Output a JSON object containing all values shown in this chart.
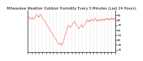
{
  "title": "Milwaukee Weather Outdoor Humidity Every 5 Minutes (Last 24 Hours)",
  "y_right": [
    90,
    80,
    70,
    60,
    50,
    40,
    30,
    20
  ],
  "ylim": [
    15,
    100
  ],
  "line_color": "#ff0000",
  "bg_color": "#ffffff",
  "grid_color": "#aaaaaa",
  "title_fontsize": 3.8,
  "tick_fontsize": 3.0,
  "data_y": [
    88,
    88,
    87,
    87,
    86,
    85,
    84,
    83,
    82,
    82,
    83,
    84,
    85,
    86,
    86,
    85,
    84,
    83,
    82,
    82,
    83,
    84,
    85,
    86,
    87,
    88,
    89,
    90,
    91,
    92,
    91,
    90,
    89,
    88,
    87,
    86,
    87,
    88,
    89,
    90,
    91,
    92,
    91,
    90,
    89,
    88,
    87,
    86,
    85,
    84,
    83,
    82,
    81,
    80,
    79,
    78,
    77,
    76,
    75,
    74,
    73,
    72,
    71,
    70,
    69,
    68,
    67,
    66,
    65,
    64,
    63,
    62,
    61,
    60,
    59,
    58,
    57,
    56,
    55,
    54,
    53,
    52,
    51,
    50,
    49,
    48,
    47,
    46,
    45,
    44,
    43,
    42,
    41,
    40,
    39,
    38,
    37,
    36,
    35,
    34,
    33,
    32,
    31,
    30,
    31,
    32,
    33,
    34,
    33,
    32,
    31,
    30,
    29,
    31,
    33,
    35,
    37,
    39,
    41,
    43,
    45,
    47,
    49,
    51,
    53,
    55,
    57,
    59,
    61,
    63,
    65,
    67,
    68,
    69,
    70,
    69,
    68,
    67,
    66,
    65,
    66,
    67,
    68,
    69,
    70,
    71,
    72,
    73,
    74,
    75,
    76,
    77,
    78,
    77,
    76,
    75,
    74,
    73,
    72,
    71,
    70,
    69,
    68,
    67,
    66,
    65,
    64,
    63,
    64,
    65,
    66,
    67,
    68,
    69,
    70,
    71,
    70,
    69,
    68,
    67,
    66,
    67,
    68,
    69,
    70,
    71,
    72,
    73,
    74,
    75,
    76,
    77,
    78,
    79,
    80,
    81,
    80,
    79,
    78,
    77,
    78,
    79,
    80,
    79,
    78,
    79,
    80,
    81,
    82,
    83,
    82,
    81,
    80,
    79,
    78,
    79,
    80,
    81,
    82,
    83,
    84,
    83,
    82,
    81,
    80,
    79,
    78,
    79,
    80,
    81,
    82,
    81,
    80,
    79,
    78,
    79,
    80,
    81,
    82,
    83,
    82,
    81,
    80,
    79,
    80,
    81,
    82,
    83,
    82,
    81,
    80,
    81,
    82,
    83,
    82,
    81,
    82,
    83,
    84,
    83,
    82,
    83,
    84,
    83,
    82,
    83,
    82,
    81,
    82,
    83,
    82,
    81,
    82,
    83,
    84,
    85,
    84,
    83,
    82,
    81,
    82,
    83,
    82,
    83,
    84,
    83,
    84
  ]
}
